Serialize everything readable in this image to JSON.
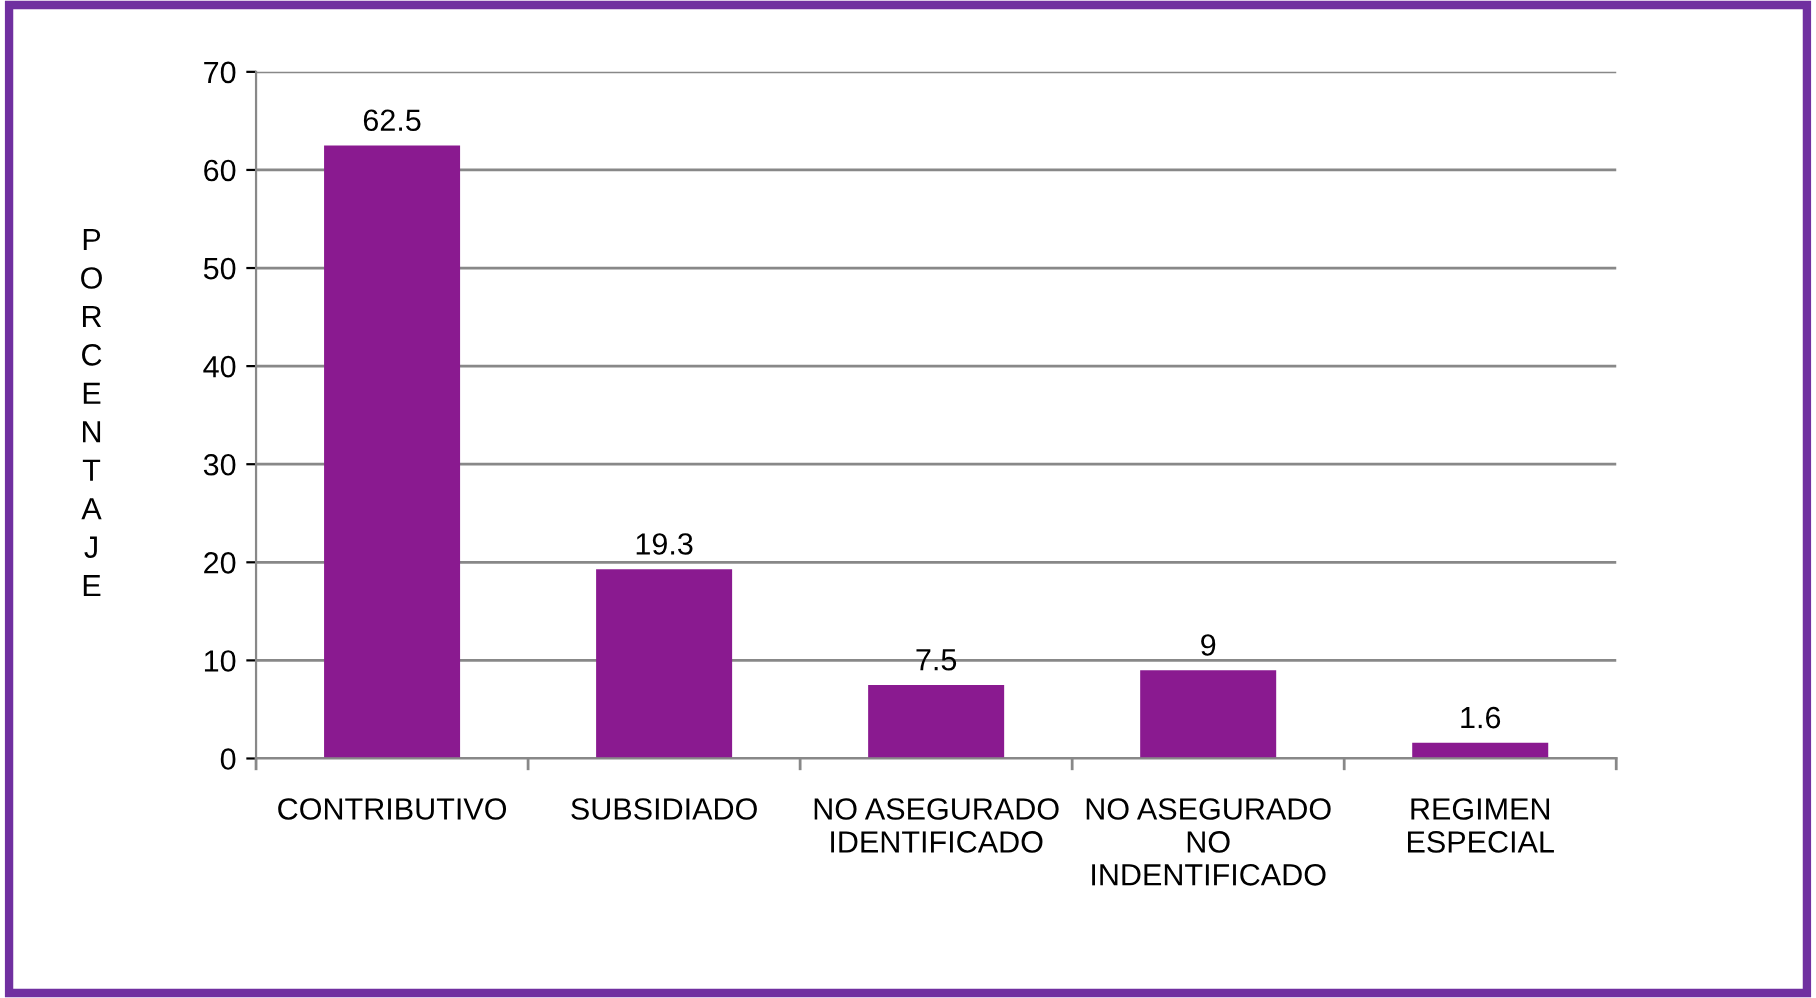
{
  "chart_data": {
    "type": "bar",
    "ylabel": "PORCENTAJE",
    "categories": [
      "CONTRIBUTIVO",
      "SUBSIDIADO",
      "NO ASEGURADO\nIDENTIFICADO",
      "NO ASEGURADO\nNO\nINDENTIFICADO",
      "REGIMEN\nESPECIAL"
    ],
    "values": [
      62.5,
      19.3,
      7.5,
      9,
      1.6
    ],
    "color": "#8a1a90",
    "ylim": [
      0,
      70
    ],
    "yticks": [
      0,
      10,
      20,
      30,
      40,
      50,
      60,
      70
    ],
    "grid": "y",
    "data_labels": true
  }
}
